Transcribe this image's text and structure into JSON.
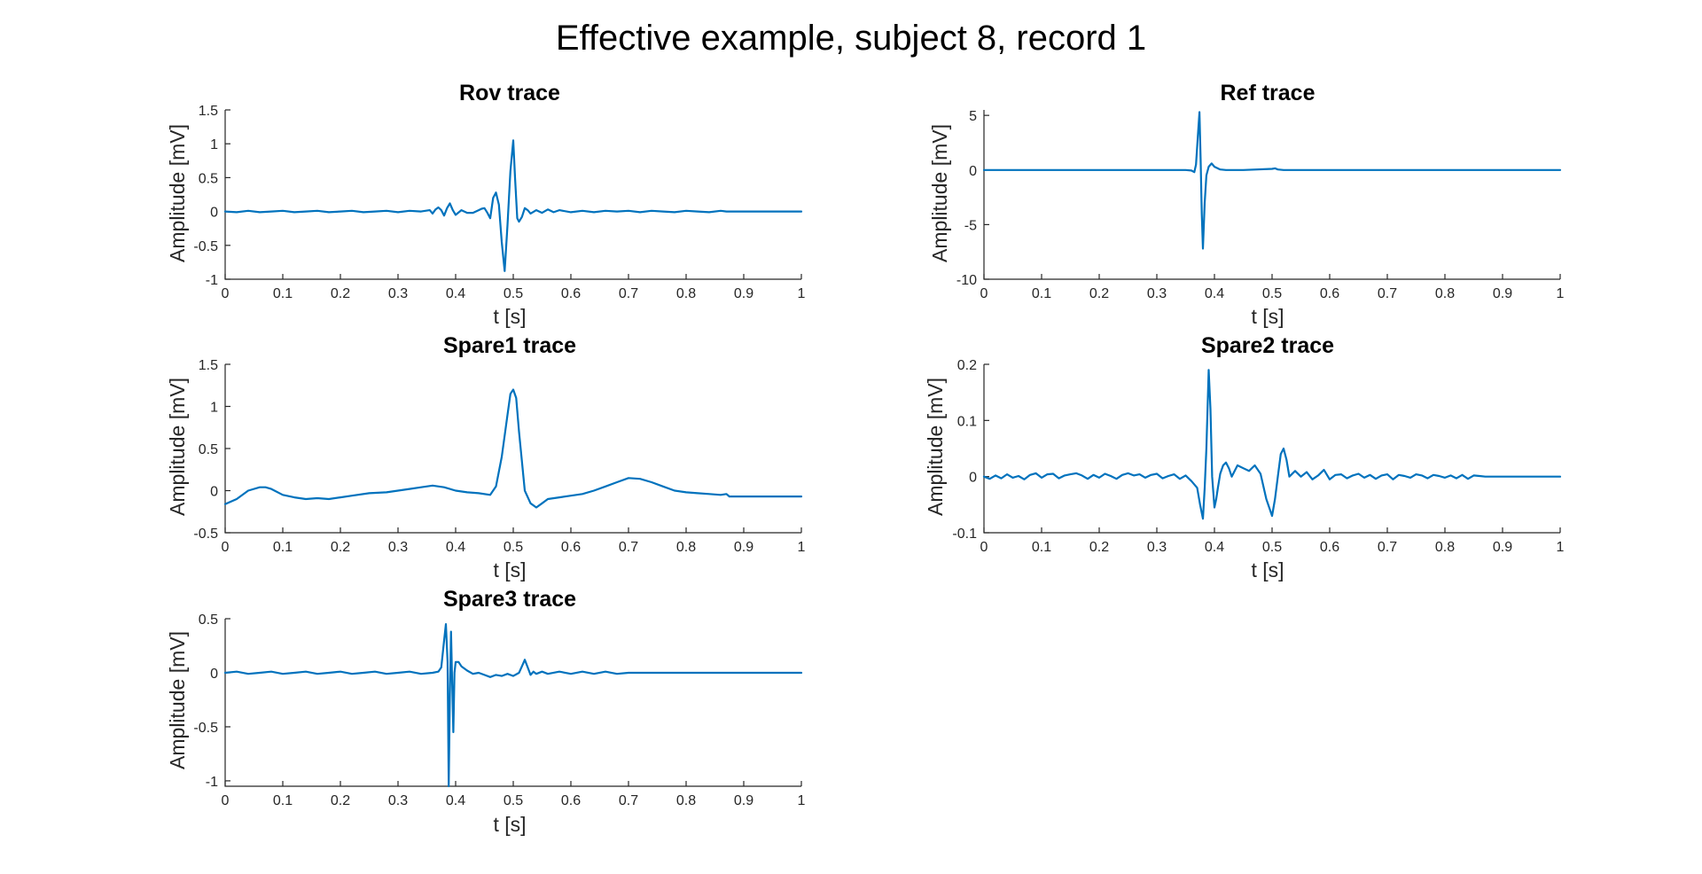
{
  "figure": {
    "title": "Effective example, subject 8, record 1"
  },
  "colors": {
    "trace": "#0072BD",
    "axis": "#262626"
  },
  "chart_data": [
    {
      "type": "line",
      "title": "Rov trace",
      "xlabel": "t [s]",
      "ylabel": "Amplitude [mV]",
      "xlim": [
        0,
        1
      ],
      "ylim": [
        -1,
        1.5
      ],
      "xticks": [
        0,
        0.1,
        0.2,
        0.3,
        0.4,
        0.5,
        0.6,
        0.7,
        0.8,
        0.9,
        1
      ],
      "yticks": [
        -1,
        -0.5,
        0,
        0.5,
        1,
        1.5
      ],
      "series": [
        {
          "x": [
            0,
            0.02,
            0.04,
            0.06,
            0.08,
            0.1,
            0.12,
            0.14,
            0.16,
            0.18,
            0.2,
            0.22,
            0.24,
            0.26,
            0.28,
            0.3,
            0.32,
            0.34,
            0.355,
            0.36,
            0.365,
            0.37,
            0.375,
            0.38,
            0.385,
            0.39,
            0.395,
            0.4,
            0.41,
            0.42,
            0.43,
            0.44,
            0.445,
            0.45,
            0.455,
            0.46,
            0.465,
            0.47,
            0.475,
            0.48,
            0.485,
            0.49,
            0.495,
            0.5,
            0.503,
            0.507,
            0.51,
            0.515,
            0.52,
            0.525,
            0.53,
            0.54,
            0.55,
            0.56,
            0.57,
            0.58,
            0.6,
            0.62,
            0.64,
            0.66,
            0.68,
            0.7,
            0.72,
            0.74,
            0.76,
            0.78,
            0.8,
            0.82,
            0.84,
            0.86,
            0.87,
            0.88,
            0.9,
            0.95,
            1
          ],
          "y": [
            0,
            -0.01,
            0.01,
            -0.01,
            0,
            0.01,
            -0.01,
            0,
            0.01,
            -0.01,
            0,
            0.01,
            -0.01,
            0,
            0.01,
            -0.01,
            0.01,
            0,
            0.02,
            -0.03,
            0.03,
            0.06,
            0.02,
            -0.06,
            0.05,
            0.12,
            0.02,
            -0.05,
            0.02,
            -0.02,
            -0.02,
            0.02,
            0.04,
            0.05,
            -0.02,
            -0.1,
            0.2,
            0.28,
            0.1,
            -0.45,
            -0.88,
            -0.2,
            0.6,
            1.05,
            0.5,
            -0.1,
            -0.15,
            -0.08,
            0.05,
            0.02,
            -0.03,
            0.02,
            -0.02,
            0.03,
            -0.01,
            0.02,
            -0.01,
            0.01,
            -0.01,
            0.01,
            0,
            0.01,
            -0.01,
            0.01,
            0,
            -0.01,
            0.01,
            0,
            -0.01,
            0.01,
            0,
            0,
            0,
            0,
            0
          ]
        }
      ]
    },
    {
      "type": "line",
      "title": "Ref trace",
      "xlabel": "t [s]",
      "ylabel": "Amplitude [mV]",
      "xlim": [
        0,
        1
      ],
      "ylim": [
        -10,
        5.5
      ],
      "xticks": [
        0,
        0.1,
        0.2,
        0.3,
        0.4,
        0.5,
        0.6,
        0.7,
        0.8,
        0.9,
        1
      ],
      "yticks": [
        -10,
        -5,
        0,
        5
      ],
      "series": [
        {
          "x": [
            0,
            0.1,
            0.2,
            0.3,
            0.35,
            0.36,
            0.365,
            0.368,
            0.371,
            0.374,
            0.376,
            0.378,
            0.38,
            0.383,
            0.386,
            0.39,
            0.395,
            0.4,
            0.41,
            0.42,
            0.45,
            0.5,
            0.505,
            0.51,
            0.52,
            0.6,
            0.7,
            0.8,
            0.9,
            1
          ],
          "y": [
            0,
            0,
            0,
            0,
            0,
            -0.05,
            -0.2,
            0.5,
            3.0,
            5.3,
            1.0,
            -4.0,
            -7.2,
            -3.0,
            -0.5,
            0.3,
            0.6,
            0.3,
            0.05,
            0,
            0,
            0.1,
            0.15,
            0.05,
            0,
            0,
            0,
            0,
            0,
            0
          ]
        }
      ]
    },
    {
      "type": "line",
      "title": "Spare1 trace",
      "xlabel": "t [s]",
      "ylabel": "Amplitude [mV]",
      "xlim": [
        0,
        1
      ],
      "ylim": [
        -0.5,
        1.5
      ],
      "xticks": [
        0,
        0.1,
        0.2,
        0.3,
        0.4,
        0.5,
        0.6,
        0.7,
        0.8,
        0.9,
        1
      ],
      "yticks": [
        -0.5,
        0,
        0.5,
        1,
        1.5
      ],
      "series": [
        {
          "x": [
            0,
            0.02,
            0.04,
            0.06,
            0.07,
            0.08,
            0.1,
            0.12,
            0.14,
            0.16,
            0.18,
            0.2,
            0.22,
            0.25,
            0.28,
            0.3,
            0.32,
            0.34,
            0.36,
            0.38,
            0.4,
            0.42,
            0.44,
            0.46,
            0.47,
            0.48,
            0.49,
            0.495,
            0.5,
            0.505,
            0.51,
            0.52,
            0.53,
            0.54,
            0.55,
            0.56,
            0.58,
            0.6,
            0.62,
            0.64,
            0.66,
            0.68,
            0.7,
            0.72,
            0.74,
            0.76,
            0.78,
            0.8,
            0.82,
            0.84,
            0.86,
            0.87,
            0.875,
            0.9,
            0.95,
            1
          ],
          "y": [
            -0.16,
            -0.1,
            0.0,
            0.04,
            0.04,
            0.02,
            -0.05,
            -0.08,
            -0.1,
            -0.09,
            -0.1,
            -0.08,
            -0.06,
            -0.03,
            -0.02,
            0.0,
            0.02,
            0.04,
            0.06,
            0.04,
            0.0,
            -0.02,
            -0.03,
            -0.05,
            0.05,
            0.4,
            0.9,
            1.15,
            1.2,
            1.1,
            0.7,
            0.0,
            -0.15,
            -0.2,
            -0.15,
            -0.1,
            -0.08,
            -0.06,
            -0.04,
            0.0,
            0.05,
            0.1,
            0.15,
            0.14,
            0.1,
            0.05,
            0.0,
            -0.02,
            -0.03,
            -0.04,
            -0.05,
            -0.04,
            -0.07,
            -0.07,
            -0.07,
            -0.07
          ]
        }
      ]
    },
    {
      "type": "line",
      "title": "Spare2 trace",
      "xlabel": "t [s]",
      "ylabel": "Amplitude [mV]",
      "xlim": [
        0,
        1
      ],
      "ylim": [
        -0.1,
        0.2
      ],
      "xticks": [
        0,
        0.1,
        0.2,
        0.3,
        0.4,
        0.5,
        0.6,
        0.7,
        0.8,
        0.9,
        1
      ],
      "yticks": [
        -0.1,
        0,
        0.1,
        0.2
      ],
      "series": [
        {
          "x": [
            0,
            0.01,
            0.02,
            0.03,
            0.04,
            0.05,
            0.06,
            0.07,
            0.08,
            0.09,
            0.1,
            0.11,
            0.12,
            0.13,
            0.14,
            0.15,
            0.16,
            0.17,
            0.18,
            0.19,
            0.2,
            0.21,
            0.22,
            0.23,
            0.24,
            0.25,
            0.26,
            0.27,
            0.28,
            0.29,
            0.3,
            0.31,
            0.32,
            0.33,
            0.34,
            0.35,
            0.36,
            0.37,
            0.375,
            0.38,
            0.383,
            0.386,
            0.39,
            0.393,
            0.396,
            0.4,
            0.403,
            0.406,
            0.41,
            0.415,
            0.42,
            0.425,
            0.43,
            0.435,
            0.44,
            0.45,
            0.46,
            0.47,
            0.48,
            0.49,
            0.5,
            0.505,
            0.51,
            0.515,
            0.52,
            0.525,
            0.53,
            0.54,
            0.55,
            0.56,
            0.57,
            0.58,
            0.59,
            0.6,
            0.61,
            0.62,
            0.63,
            0.64,
            0.65,
            0.66,
            0.67,
            0.68,
            0.69,
            0.7,
            0.71,
            0.72,
            0.73,
            0.74,
            0.75,
            0.76,
            0.77,
            0.78,
            0.79,
            0.8,
            0.81,
            0.82,
            0.83,
            0.84,
            0.85,
            0.86,
            0.87,
            0.88,
            0.9,
            0.95,
            1
          ],
          "y": [
            0,
            -0.004,
            0.002,
            -0.003,
            0.004,
            -0.002,
            0.001,
            -0.005,
            0.003,
            0.006,
            -0.002,
            0.004,
            0.005,
            -0.003,
            0.002,
            0.004,
            0.006,
            0.002,
            -0.004,
            0.003,
            -0.002,
            0.005,
            0.001,
            -0.004,
            0.003,
            0.006,
            0.002,
            0.004,
            -0.002,
            0.003,
            0.005,
            -0.003,
            0.001,
            0.004,
            -0.004,
            0.002,
            -0.008,
            -0.02,
            -0.05,
            -0.075,
            -0.02,
            0.05,
            0.19,
            0.12,
            0.0,
            -0.055,
            -0.04,
            -0.02,
            0.005,
            0.02,
            0.025,
            0.015,
            0.0,
            0.01,
            0.02,
            0.015,
            0.01,
            0.02,
            0.005,
            -0.04,
            -0.07,
            -0.04,
            0.0,
            0.04,
            0.05,
            0.03,
            0.0,
            0.01,
            0.0,
            0.008,
            -0.005,
            0.002,
            0.012,
            -0.005,
            0.003,
            0.004,
            -0.003,
            0.002,
            0.005,
            -0.002,
            0.003,
            -0.004,
            0.002,
            0.004,
            -0.005,
            0.003,
            0.001,
            -0.002,
            0.004,
            0.002,
            -0.003,
            0.003,
            0.001,
            -0.002,
            0.002,
            -0.003,
            0.003,
            -0.004,
            0.002,
            0.001,
            0.0,
            0,
            0,
            0,
            0
          ]
        }
      ]
    },
    {
      "type": "line",
      "title": "Spare3 trace",
      "xlabel": "t [s]",
      "ylabel": "Amplitude [mV]",
      "xlim": [
        0,
        1
      ],
      "ylim": [
        -1.05,
        0.5
      ],
      "xticks": [
        0,
        0.1,
        0.2,
        0.3,
        0.4,
        0.5,
        0.6,
        0.7,
        0.8,
        0.9,
        1
      ],
      "yticks": [
        -1,
        -0.5,
        0,
        0.5
      ],
      "series": [
        {
          "x": [
            0,
            0.02,
            0.04,
            0.06,
            0.08,
            0.1,
            0.12,
            0.14,
            0.16,
            0.18,
            0.2,
            0.22,
            0.24,
            0.26,
            0.28,
            0.3,
            0.32,
            0.34,
            0.36,
            0.37,
            0.375,
            0.38,
            0.383,
            0.386,
            0.388,
            0.39,
            0.392,
            0.394,
            0.396,
            0.398,
            0.4,
            0.405,
            0.41,
            0.42,
            0.43,
            0.44,
            0.45,
            0.46,
            0.47,
            0.48,
            0.49,
            0.5,
            0.51,
            0.515,
            0.52,
            0.525,
            0.53,
            0.535,
            0.54,
            0.55,
            0.56,
            0.58,
            0.6,
            0.62,
            0.64,
            0.66,
            0.68,
            0.7,
            0.75,
            0.8,
            0.85,
            0.87,
            0.9,
            0.95,
            1
          ],
          "y": [
            0,
            0.01,
            -0.01,
            0,
            0.01,
            -0.01,
            0,
            0.01,
            -0.01,
            0,
            0.01,
            -0.01,
            0,
            0.01,
            -0.01,
            0,
            0.01,
            -0.01,
            0,
            0.01,
            0.05,
            0.3,
            0.45,
            0.1,
            -1.05,
            -0.2,
            0.38,
            -0.1,
            -0.55,
            0.0,
            0.1,
            0.1,
            0.06,
            0.02,
            -0.01,
            0.0,
            -0.02,
            -0.04,
            -0.02,
            -0.03,
            -0.01,
            -0.03,
            0.0,
            0.06,
            0.12,
            0.05,
            -0.02,
            0.01,
            -0.01,
            0.01,
            -0.01,
            0.01,
            -0.01,
            0.01,
            -0.01,
            0.01,
            -0.01,
            0,
            0,
            0,
            0,
            0,
            0,
            0,
            0
          ]
        }
      ]
    }
  ]
}
